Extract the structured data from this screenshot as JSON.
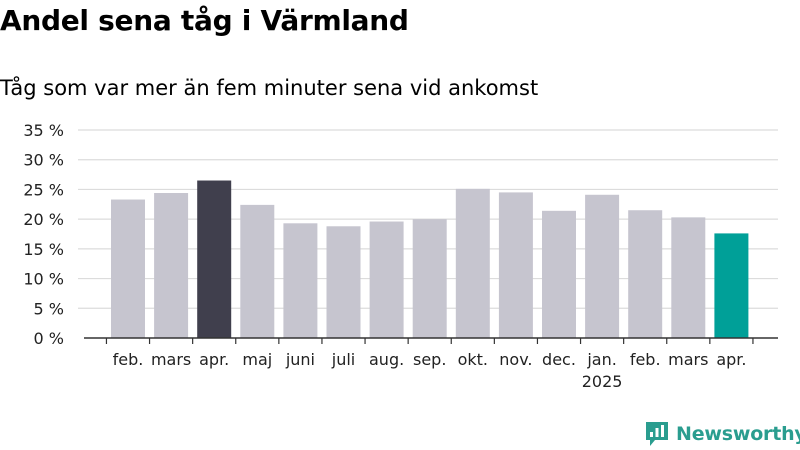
{
  "header": {
    "title": "Andel sena tåg i Värmland",
    "subtitle": "Tåg som var mer än fem minuter sena vid ankomst"
  },
  "brand": {
    "name": "Newsworthy",
    "icon": "newsworthy-logo-icon"
  },
  "colors": {
    "default_bar": "#c6c5cf",
    "highlight_bar": "#403f4d",
    "latest_bar": "#00a098",
    "grid": "#dcdcdc",
    "axis": "#333333",
    "brand": "#2a9d8f"
  },
  "chart_data": {
    "type": "bar",
    "title": "Andel sena tåg i Värmland",
    "subtitle": "Tåg som var mer än fem minuter sena vid ankomst",
    "categories": [
      "feb.",
      "mars",
      "apr.",
      "maj",
      "juni",
      "juli",
      "aug.",
      "sep.",
      "okt.",
      "nov.",
      "dec.",
      "jan.",
      "feb.",
      "mars",
      "apr."
    ],
    "year_labels": [
      {
        "category_index": 11,
        "label": "2025"
      }
    ],
    "values": [
      23.3,
      24.4,
      26.5,
      22.4,
      19.3,
      18.8,
      19.6,
      20.0,
      25.1,
      24.5,
      21.4,
      24.1,
      21.5,
      20.3,
      17.6
    ],
    "unit": "%",
    "bar_colors": [
      "default",
      "default",
      "highlight",
      "default",
      "default",
      "default",
      "default",
      "default",
      "default",
      "default",
      "default",
      "default",
      "default",
      "default",
      "latest"
    ],
    "ylim": [
      0,
      35
    ],
    "yticks": [
      0,
      5,
      10,
      15,
      20,
      25,
      30,
      35
    ],
    "ytick_labels": [
      "0 %",
      "5 %",
      "10 %",
      "15 %",
      "20 %",
      "25 %",
      "30 %",
      "35 %"
    ],
    "xlabel": "",
    "ylabel": "",
    "grid": true,
    "legend": "none"
  }
}
